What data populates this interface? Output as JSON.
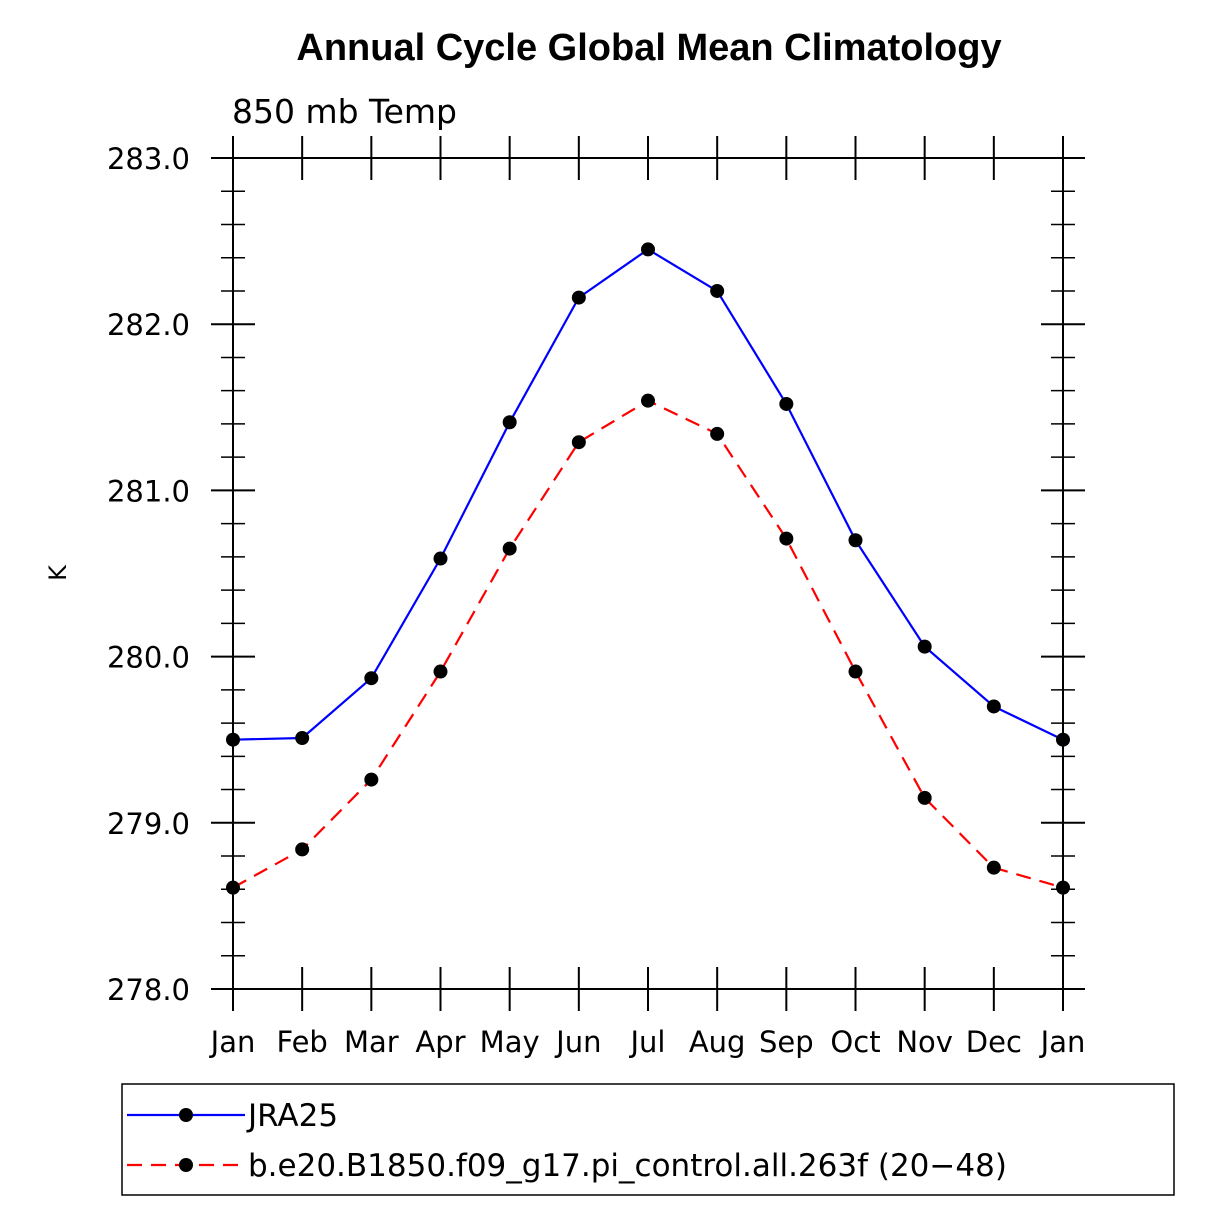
{
  "chart_data": {
    "type": "line",
    "title": "Annual Cycle Global Mean Climatology",
    "subtitle": "850 mb Temp",
    "xlabel": "",
    "ylabel": "K",
    "categories": [
      "Jan",
      "Feb",
      "Mar",
      "Apr",
      "May",
      "Jun",
      "Jul",
      "Aug",
      "Sep",
      "Oct",
      "Nov",
      "Dec",
      "Jan"
    ],
    "ylim": [
      278.0,
      283.0
    ],
    "yticks": [
      "278.0",
      "279.0",
      "280.0",
      "281.0",
      "282.0",
      "283.0"
    ],
    "series": [
      {
        "name": "JRA25",
        "color": "#0000ff",
        "dash": "solid",
        "values": [
          279.5,
          279.51,
          279.87,
          280.59,
          281.41,
          282.16,
          282.45,
          282.2,
          281.52,
          280.7,
          280.06,
          279.7,
          279.5
        ]
      },
      {
        "name": "b.e20.B1850.f09_g17.pi_control.all.263f (20−48)",
        "color": "#ff0000",
        "dash": "dashed",
        "values": [
          278.61,
          278.84,
          279.26,
          279.91,
          280.65,
          281.29,
          281.54,
          281.34,
          280.71,
          279.91,
          279.15,
          278.73,
          278.61
        ]
      }
    ],
    "grid": false,
    "legend_position": "bottom"
  }
}
